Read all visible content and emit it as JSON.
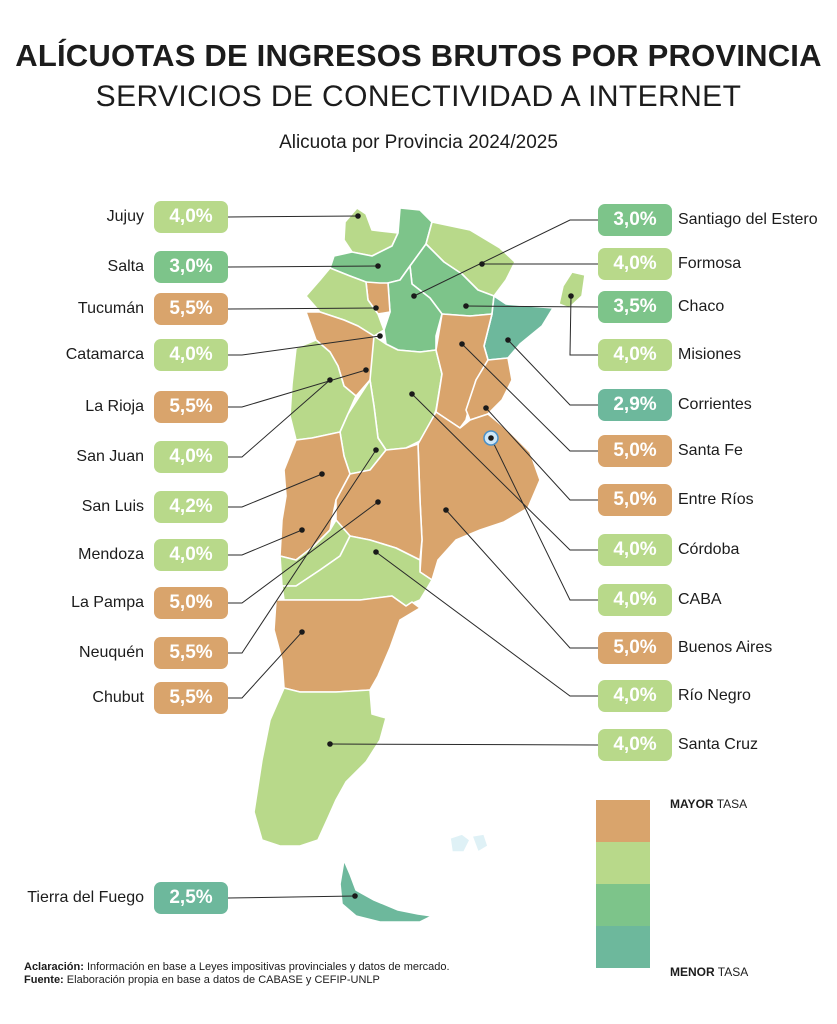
{
  "title": "ALÍCUOTAS DE INGRESOS BRUTOS POR PROVINCIA",
  "subtitle": "SERVICIOS DE CONECTIVIDAD A INTERNET",
  "caption": "Alicuota por Provincia 2024/2025",
  "colors": {
    "mayor": "#d9a46c",
    "medio_alto": "#b8d98a",
    "medio_bajo": "#7dc48a",
    "menor": "#6db89c"
  },
  "left_provinces": [
    {
      "name": "Jujuy",
      "rate": "4,0%",
      "color": "#b8d98a"
    },
    {
      "name": "Salta",
      "rate": "3,0%",
      "color": "#7dc48a"
    },
    {
      "name": "Tucumán",
      "rate": "5,5%",
      "color": "#d9a46c"
    },
    {
      "name": "Catamarca",
      "rate": "4,0%",
      "color": "#b8d98a"
    },
    {
      "name": "La Rioja",
      "rate": "5,5%",
      "color": "#d9a46c"
    },
    {
      "name": "San Juan",
      "rate": "4,0%",
      "color": "#b8d98a"
    },
    {
      "name": "San Luis",
      "rate": "4,2%",
      "color": "#b8d98a"
    },
    {
      "name": "Mendoza",
      "rate": "4,0%",
      "color": "#b8d98a"
    },
    {
      "name": "La Pampa",
      "rate": "5,0%",
      "color": "#d9a46c"
    },
    {
      "name": "Neuquén",
      "rate": "5,5%",
      "color": "#d9a46c"
    },
    {
      "name": "Chubut",
      "rate": "5,5%",
      "color": "#d9a46c"
    },
    {
      "name": "Tierra del Fuego",
      "rate": "2,5%",
      "color": "#6db89c"
    }
  ],
  "right_provinces": [
    {
      "name": "Santiago del Estero",
      "rate": "3,0%",
      "color": "#7dc48a"
    },
    {
      "name": "Formosa",
      "rate": "4,0%",
      "color": "#b8d98a"
    },
    {
      "name": "Chaco",
      "rate": "3,5%",
      "color": "#7dc48a"
    },
    {
      "name": "Misiones",
      "rate": "4,0%",
      "color": "#b8d98a"
    },
    {
      "name": "Corrientes",
      "rate": "2,9%",
      "color": "#6db89c"
    },
    {
      "name": "Santa Fe",
      "rate": "5,0%",
      "color": "#d9a46c"
    },
    {
      "name": "Entre Ríos",
      "rate": "5,0%",
      "color": "#d9a46c"
    },
    {
      "name": "Córdoba",
      "rate": "4,0%",
      "color": "#b8d98a"
    },
    {
      "name": "CABA",
      "rate": "4,0%",
      "color": "#b8d98a"
    },
    {
      "name": "Buenos Aires",
      "rate": "5,0%",
      "color": "#d9a46c"
    },
    {
      "name": "Río Negro",
      "rate": "4,0%",
      "color": "#b8d98a"
    },
    {
      "name": "Santa Cruz",
      "rate": "4,0%",
      "color": "#b8d98a"
    }
  ],
  "legend": {
    "top_bold": "MAYOR",
    "top_rest": " TASA",
    "bottom_bold": "MENOR",
    "bottom_rest": " TASA",
    "colors": [
      "#d9a46c",
      "#b8d98a",
      "#7dc48a",
      "#6db89c"
    ]
  },
  "notes": {
    "aclaracion_label": "Aclaración:",
    "aclaracion_text": " Información en base a Leyes impositivas provinciales y datos de mercado.",
    "fuente_label": "Fuente:",
    "fuente_text": " Elaboración propia en base a datos de CABASE y CEFIP-UNLP"
  }
}
